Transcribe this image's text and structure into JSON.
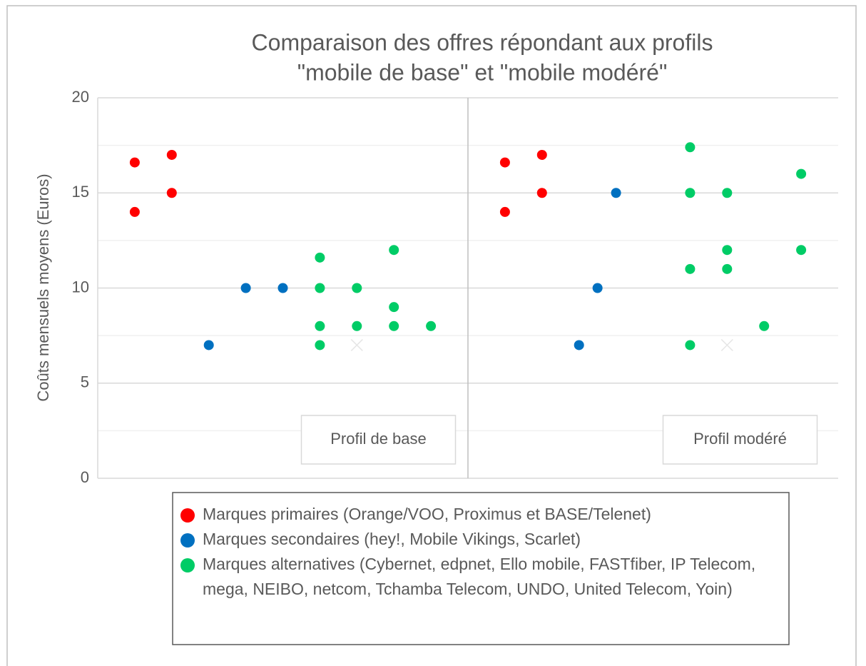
{
  "chart_data": {
    "type": "scatter",
    "title": [
      "Comparaison des offres répondant aux profils",
      "\"mobile de base\" et \"mobile modéré\""
    ],
    "y_label": "Coûts mensuels moyens (Euros)",
    "xlim": [
      0,
      20
    ],
    "ylim": [
      0,
      20
    ],
    "yticks": [
      0,
      5,
      10,
      15,
      20
    ],
    "grid": true,
    "annotations": [
      "Profil de base",
      "Profil modéré"
    ],
    "legend": "bottom",
    "series": [
      {
        "name": "Marques primaires (Orange/VOO, Proximus et BASE/Telenet)",
        "color": "#ff0000",
        "marker": "circle",
        "x": [
          1,
          1,
          2,
          2,
          11,
          11,
          12,
          12
        ],
        "values": [
          16.6,
          14,
          17,
          15,
          16.6,
          14,
          17,
          15
        ]
      },
      {
        "name": "Marques secondaires (hey!, Mobile Vikings, Scarlet)",
        "color": "#0070c0",
        "marker": "circle",
        "x": [
          3,
          4,
          5,
          13,
          13.5,
          14
        ],
        "values": [
          7,
          10,
          10,
          7,
          10,
          15
        ]
      },
      {
        "name": "Marques alternatives (Cybernet, edpnet, Ello mobile, FASTfiber, IP Telecom, mega, NEIBO, netcom, Tchamba Telecom, UNDO, United Telecom, Yoin)",
        "color": "#00cc66",
        "marker": "circle",
        "x": [
          6,
          6,
          6,
          6,
          7,
          7,
          8,
          8,
          8,
          9,
          16,
          16,
          16,
          16,
          17,
          17,
          17,
          18,
          19,
          19
        ],
        "values": [
          11.6,
          10,
          8,
          7,
          10,
          8,
          12,
          9,
          8,
          8,
          17.4,
          15,
          11,
          7,
          15,
          12,
          11,
          8,
          16,
          12
        ]
      },
      {
        "color": "#e6e6e6",
        "marker": "x",
        "x": [
          7,
          17
        ],
        "values": [
          7,
          7
        ]
      }
    ]
  }
}
